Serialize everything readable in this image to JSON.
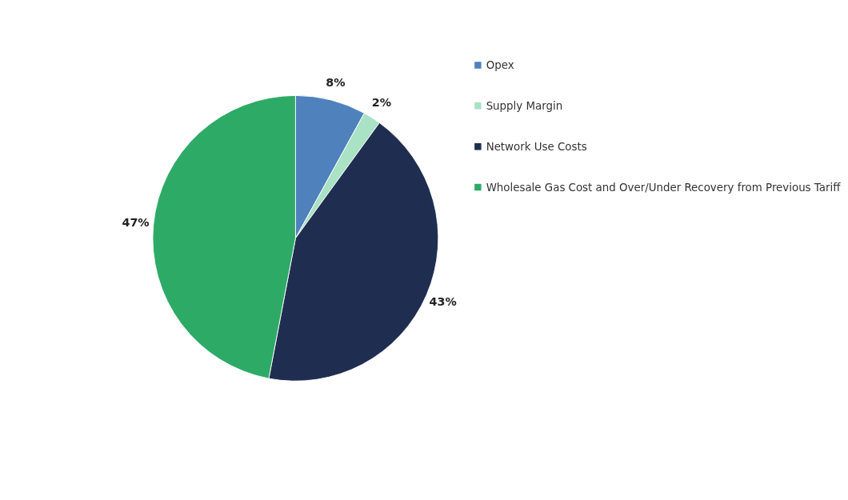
{
  "chart_data": {
    "type": "pie",
    "categories": [
      "Opex",
      "Supply Margin",
      "Network Use Costs",
      "Wholesale Gas Cost and Over/Under Recovery from Previous Tariff"
    ],
    "values": [
      8,
      2,
      43,
      47
    ],
    "colors": [
      "#4f81bd",
      "#a9e2c4",
      "#1f2e50",
      "#2eaa67"
    ],
    "value_labels": [
      "8%",
      "2%",
      "43%",
      "47%"
    ],
    "legend": "right"
  }
}
